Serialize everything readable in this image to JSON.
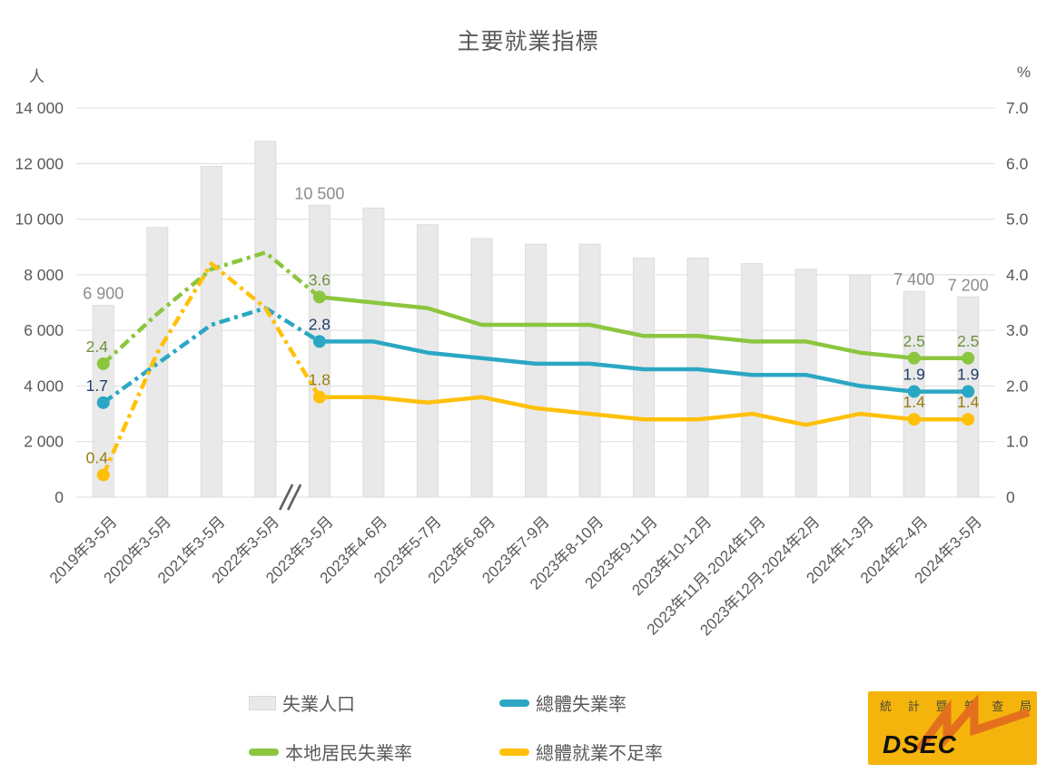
{
  "page": {
    "title": "主要就業指標",
    "left_unit": "人",
    "right_unit": "%"
  },
  "chart_data": {
    "type": "bar+line combo",
    "title": "主要就業指標",
    "categories": [
      "2019年3-5月",
      "2020年3-5月",
      "2021年3-5月",
      "2022年3-5月",
      "2023年3-5月",
      "2023年4-6月",
      "2023年5-7月",
      "2023年6-8月",
      "2023年7-9月",
      "2023年8-10月",
      "2023年9-11月",
      "2023年10-12月",
      "2023年11月-2024年1月",
      "2023年12月-2024年2月",
      "2024年1-3月",
      "2024年2-4月",
      "2024年3-5月"
    ],
    "left_axis": {
      "unit": "人",
      "min": 0,
      "max": 14000,
      "ticks": [
        "14 000",
        "12 000",
        "10 000",
        "8 000",
        "6 000",
        "4 000",
        "2 000",
        "0"
      ]
    },
    "right_axis": {
      "unit": "%",
      "min": 0,
      "max": 7.0,
      "ticks": [
        "7.0",
        "6.0",
        "5.0",
        "4.0",
        "3.0",
        "2.0",
        "1.0",
        "0"
      ]
    },
    "axis_break_between_indices": [
      3,
      4
    ],
    "dashed_until_index": 4,
    "grid": true,
    "legend_position": "bottom",
    "bars": {
      "id": "unemployed-population",
      "name": "失業人口",
      "color": "#E9E9E9",
      "border": "#DCDCDC",
      "label_color": "#8C8C8C",
      "values": [
        6900,
        9700,
        11900,
        12800,
        10500,
        10400,
        9800,
        9300,
        9100,
        9100,
        8600,
        8600,
        8400,
        8200,
        8000,
        7400,
        7200
      ],
      "labels": {
        "0": "6 900",
        "4": "10 500",
        "15": "7 400",
        "16": "7 200"
      }
    },
    "series": [
      {
        "id": "overall-unemployment-rate",
        "name": "總體失業率",
        "color": "#2BA7C4",
        "label_color": "#1F3F68",
        "values": [
          1.7,
          2.4,
          3.1,
          3.4,
          2.8,
          2.8,
          2.6,
          2.5,
          2.4,
          2.4,
          2.3,
          2.3,
          2.2,
          2.2,
          2.0,
          1.9,
          1.9
        ],
        "labels": {
          "0": "1.7",
          "4": "2.8",
          "15": "1.9",
          "16": "1.9"
        }
      },
      {
        "id": "local-residents-unemployment-rate",
        "name": "本地居民失業率",
        "color": "#8CC63F",
        "label_color": "#6F9240",
        "values": [
          2.4,
          3.3,
          4.1,
          4.4,
          3.6,
          3.5,
          3.4,
          3.1,
          3.1,
          3.1,
          2.9,
          2.9,
          2.8,
          2.8,
          2.6,
          2.5,
          2.5
        ],
        "labels": {
          "0": "2.4",
          "4": "3.6",
          "15": "2.5",
          "16": "2.5"
        }
      },
      {
        "id": "overall-underemployment-rate",
        "name": "總體就業不足率",
        "color": "#FFC00A",
        "label_color": "#9A7D0E",
        "values": [
          0.4,
          2.6,
          4.2,
          3.4,
          1.8,
          1.8,
          1.7,
          1.8,
          1.6,
          1.5,
          1.4,
          1.4,
          1.5,
          1.3,
          1.5,
          1.4,
          1.4
        ],
        "labels": {
          "0": "0.4",
          "4": "1.8",
          "15": "1.4",
          "16": "1.4"
        }
      }
    ],
    "axis_label_color": "#595959"
  },
  "legend": {
    "items": [
      {
        "label": "失業人口",
        "swatch": "bar",
        "color": "#E9E9E9",
        "border": "#D9D9D9"
      },
      {
        "label": "總體失業率",
        "swatch": "line",
        "color": "#2BA7C4"
      },
      {
        "label": "本地居民失業率",
        "swatch": "line",
        "color": "#8CC63F"
      },
      {
        "label": "總體就業不足率",
        "swatch": "line",
        "color": "#FFC00A"
      }
    ]
  },
  "logo": {
    "org_name": "統計暨普查局",
    "org_chars": [
      "統",
      "計",
      "暨",
      "普",
      "查",
      "局"
    ],
    "acronym": "DSEC",
    "bg": "#F5B40B",
    "zigzag": "#E4701E"
  }
}
